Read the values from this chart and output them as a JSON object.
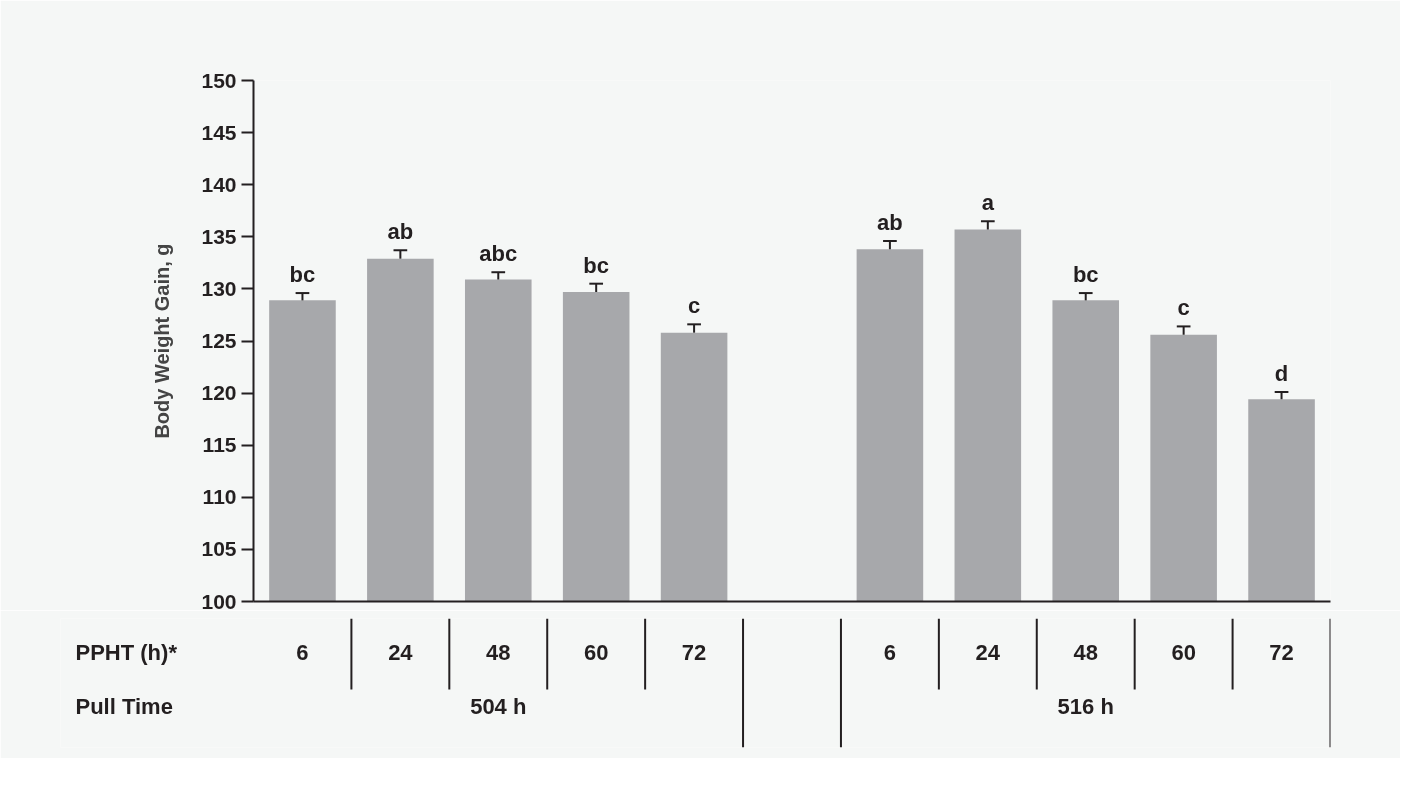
{
  "chart_data": {
    "type": "bar",
    "ylabel": "Body Weight Gain, g",
    "categories": [
      "6",
      "24",
      "48",
      "60",
      "72",
      null,
      "6",
      "24",
      "48",
      "60",
      "72"
    ],
    "values": [
      128.9,
      132.9,
      130.9,
      129.7,
      125.8,
      null,
      133.8,
      135.7,
      128.9,
      125.6,
      119.4
    ],
    "errors": [
      [
        128.9,
        129.6
      ],
      [
        132.9,
        133.7
      ],
      [
        130.9,
        131.6
      ],
      [
        129.7,
        130.5
      ],
      [
        125.8,
        126.6
      ],
      null,
      [
        133.8,
        134.6
      ],
      [
        135.7,
        136.5
      ],
      [
        128.9,
        129.6
      ],
      [
        125.6,
        126.4
      ],
      [
        119.4,
        120.1
      ]
    ],
    "value_labels": [
      "bc",
      "ab",
      "abc",
      "bc",
      "c",
      null,
      "ab",
      "a",
      "bc",
      "c",
      "d"
    ],
    "color": "#a7a8ab",
    "ylim": [
      100,
      150
    ],
    "yticks": [
      100,
      105,
      110,
      115,
      120,
      125,
      130,
      135,
      140,
      145,
      150
    ],
    "grid": false,
    "annotations": [
      "PPHT (h)*",
      "Pull Time",
      "504 h",
      "516 h"
    ]
  }
}
